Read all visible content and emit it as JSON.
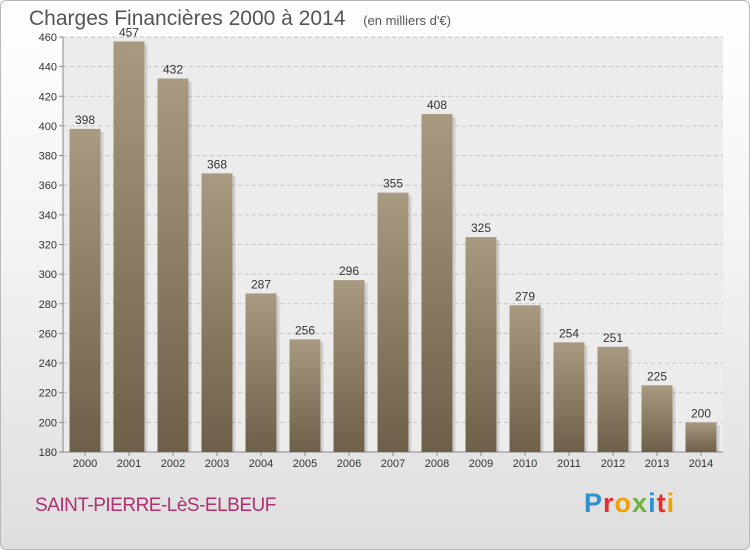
{
  "chart_data": {
    "type": "bar",
    "title": "Charges Financières 2000 à 2014",
    "subtitle": "(en milliers d'€)",
    "categories": [
      "2000",
      "2001",
      "2002",
      "2003",
      "2004",
      "2005",
      "2006",
      "2007",
      "2008",
      "2009",
      "2010",
      "2011",
      "2012",
      "2013",
      "2014"
    ],
    "values": [
      398,
      457,
      432,
      368,
      287,
      256,
      296,
      355,
      408,
      325,
      279,
      254,
      251,
      225,
      200
    ],
    "ylim": [
      180,
      460
    ],
    "yticks": [
      180,
      200,
      220,
      240,
      260,
      280,
      300,
      320,
      340,
      360,
      380,
      400,
      420,
      440,
      460
    ],
    "grid": true,
    "bar_color_top": "#a89a80",
    "bar_color_bottom": "#6e6048"
  },
  "footer": {
    "commune": "SAINT-PIERRE-LèS-ELBEUF",
    "logo": "Proxiti",
    "logo_colors": [
      "#2f8fd0",
      "#e2302f",
      "#f0a000",
      "#6cb33e",
      "#2f8fd0",
      "#e2302f",
      "#f0a000"
    ]
  }
}
